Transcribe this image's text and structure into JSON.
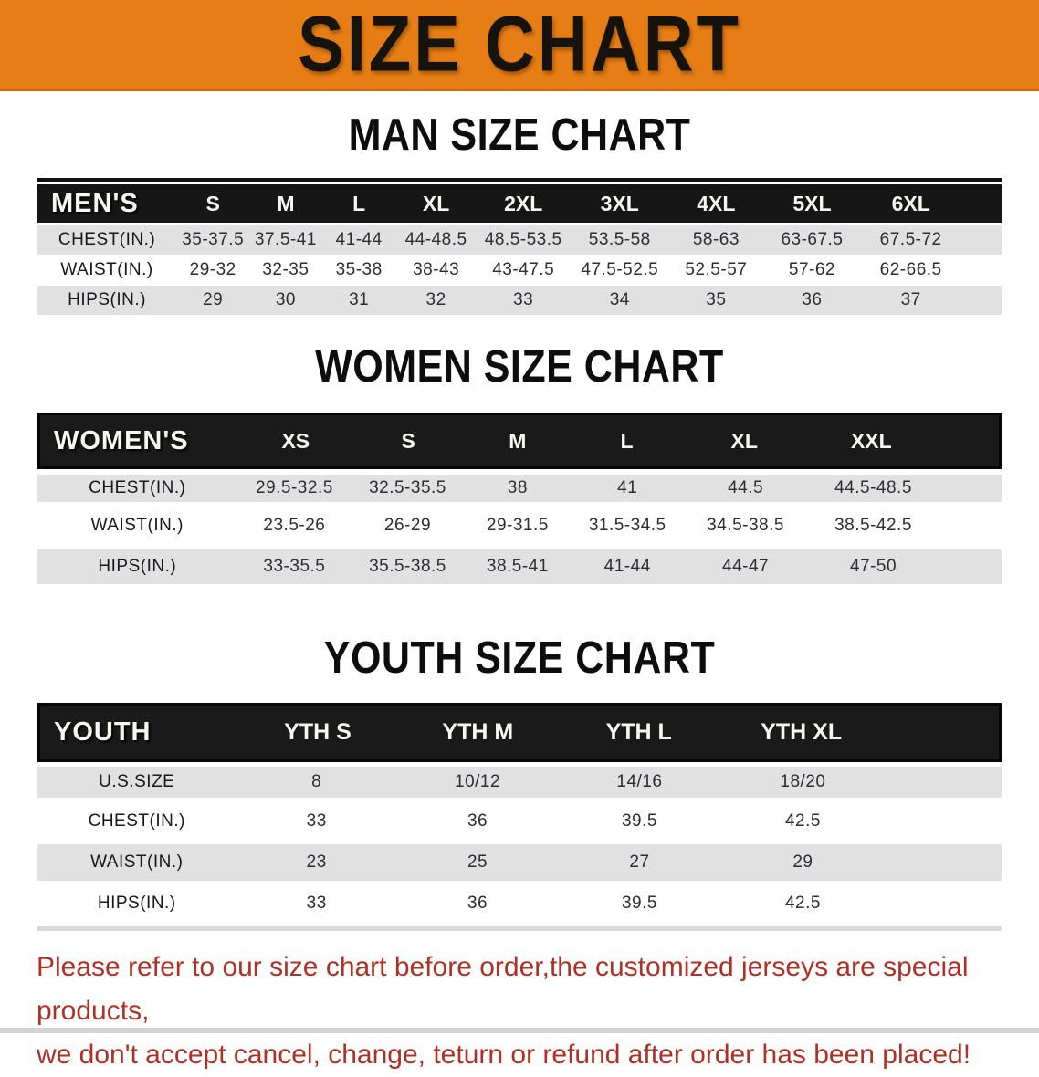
{
  "banner": {
    "title": "SIZE CHART",
    "bg_color": "#E67D15"
  },
  "men": {
    "heading": "MAN SIZE CHART",
    "header_label": "MEN'S",
    "columns": [
      "S",
      "M",
      "L",
      "XL",
      "2XL",
      "3XL",
      "4XL",
      "5XL",
      "6XL"
    ],
    "rows": [
      {
        "label": "CHEST(IN.)",
        "values": [
          "35-37.5",
          "37.5-41",
          "41-44",
          "44-48.5",
          "48.5-53.5",
          "53.5-58",
          "58-63",
          "63-67.5",
          "67.5-72"
        ]
      },
      {
        "label": "WAIST(IN.)",
        "values": [
          "29-32",
          "32-35",
          "35-38",
          "38-43",
          "43-47.5",
          "47.5-52.5",
          "52.5-57",
          "57-62",
          "62-66.5"
        ]
      },
      {
        "label": "HIPS(IN.)",
        "values": [
          "29",
          "30",
          "31",
          "32",
          "33",
          "34",
          "35",
          "36",
          "37"
        ]
      }
    ]
  },
  "women": {
    "heading": "WOMEN SIZE CHART",
    "header_label": "WOMEN'S",
    "columns": [
      "XS",
      "S",
      "M",
      "L",
      "XL",
      "XXL"
    ],
    "rows": [
      {
        "label": "CHEST(IN.)",
        "values": [
          "29.5-32.5",
          "32.5-35.5",
          "38",
          "41",
          "44.5",
          "44.5-48.5"
        ]
      },
      {
        "label": "WAIST(IN.)",
        "values": [
          "23.5-26",
          "26-29",
          "29-31.5",
          "31.5-34.5",
          "34.5-38.5",
          "38.5-42.5"
        ]
      },
      {
        "label": "HIPS(IN.)",
        "values": [
          "33-35.5",
          "35.5-38.5",
          "38.5-41",
          "41-44",
          "44-47",
          "47-50"
        ]
      }
    ]
  },
  "youth": {
    "heading": "YOUTH SIZE CHART",
    "header_label": "YOUTH",
    "columns": [
      "YTH S",
      "YTH M",
      "YTH L",
      "YTH XL"
    ],
    "rows": [
      {
        "label": "U.S.SIZE",
        "values": [
          "8",
          "10/12",
          "14/16",
          "18/20"
        ]
      },
      {
        "label": "CHEST(IN.)",
        "values": [
          "33",
          "36",
          "39.5",
          "42.5"
        ]
      },
      {
        "label": "WAIST(IN.)",
        "values": [
          "23",
          "25",
          "27",
          "29"
        ]
      },
      {
        "label": "HIPS(IN.)",
        "values": [
          "33",
          "36",
          "39.5",
          "42.5"
        ]
      }
    ]
  },
  "disclaimer": {
    "line1": "Please refer to our size chart before order,the customized jerseys are special products,",
    "line2": "we don't accept cancel, change, teturn or refund after order has been placed!",
    "color": "#AE3126"
  }
}
